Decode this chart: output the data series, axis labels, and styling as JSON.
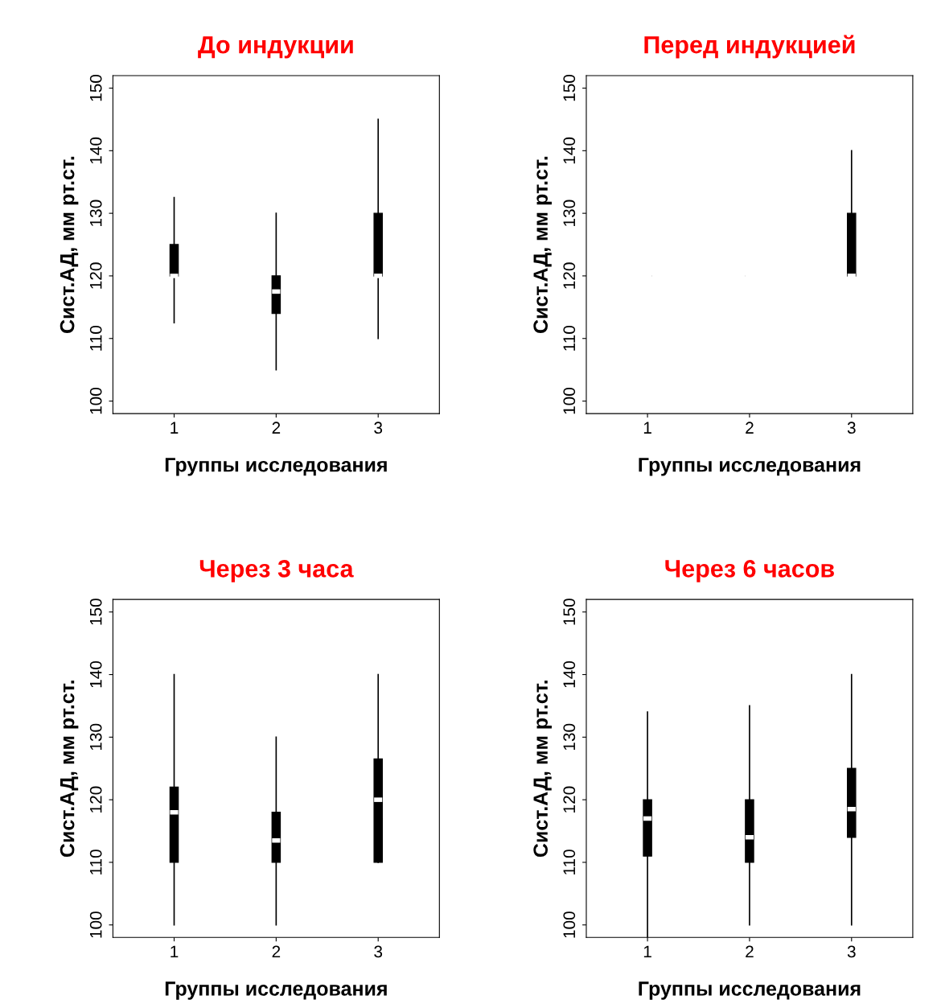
{
  "chart_data": [
    {
      "type": "box",
      "title": "До индукции",
      "xlabel": "Группы исследования",
      "ylabel": "Сист.АД, мм рт.ст.",
      "categories": [
        "1",
        "2",
        "3"
      ],
      "ylim": [
        98,
        152
      ],
      "yticks": [
        100,
        110,
        120,
        130,
        140,
        150
      ],
      "color": "#000000",
      "grid": false,
      "legend": false,
      "boxes": [
        {
          "low": 112.5,
          "q1": 120,
          "median": 120,
          "q3": 125,
          "high": 132.5
        },
        {
          "low": 105,
          "q1": 114,
          "median": 117.5,
          "q3": 120,
          "high": 130
        },
        {
          "low": 110,
          "q1": 120,
          "median": 120,
          "q3": 130,
          "high": 145
        }
      ]
    },
    {
      "type": "box",
      "title": "Перед индукцией",
      "xlabel": "Группы исследования",
      "ylabel": "Сист.АД, мм рт.ст.",
      "categories": [
        "1",
        "2",
        "3"
      ],
      "ylim": [
        98,
        152
      ],
      "yticks": [
        100,
        110,
        120,
        130,
        140,
        150
      ],
      "color": "#000000",
      "grid": false,
      "legend": false,
      "boxes": [
        {
          "low": 120,
          "q1": 120,
          "median": 120,
          "q3": 120,
          "high": 120
        },
        {
          "low": 120,
          "q1": 120,
          "median": 120,
          "q3": 120,
          "high": 120
        },
        {
          "low": 120,
          "q1": 120,
          "median": 120,
          "q3": 130,
          "high": 140
        }
      ]
    },
    {
      "type": "box",
      "title": "Через 3 часа",
      "xlabel": "Группы исследования",
      "ylabel": "Сист.АД, мм рт.ст.",
      "categories": [
        "1",
        "2",
        "3"
      ],
      "ylim": [
        98,
        152
      ],
      "yticks": [
        100,
        110,
        120,
        130,
        140,
        150
      ],
      "color": "#000000",
      "grid": false,
      "legend": false,
      "boxes": [
        {
          "low": 100,
          "q1": 110,
          "median": 118,
          "q3": 122,
          "high": 140
        },
        {
          "low": 100,
          "q1": 110,
          "median": 113.5,
          "q3": 118,
          "high": 130
        },
        {
          "low": 110,
          "q1": 110,
          "median": 120,
          "q3": 126.5,
          "high": 140
        }
      ]
    },
    {
      "type": "box",
      "title": "Через 6 часов",
      "xlabel": "Группы исследования",
      "ylabel": "Сист.АД, мм рт.ст.",
      "categories": [
        "1",
        "2",
        "3"
      ],
      "ylim": [
        98,
        152
      ],
      "yticks": [
        100,
        110,
        120,
        130,
        140,
        150
      ],
      "color": "#000000",
      "grid": false,
      "legend": false,
      "boxes": [
        {
          "low": 98,
          "q1": 111,
          "median": 117,
          "q3": 120,
          "high": 134
        },
        {
          "low": 100,
          "q1": 110,
          "median": 114,
          "q3": 120,
          "high": 135
        },
        {
          "low": 100,
          "q1": 114,
          "median": 118.5,
          "q3": 125,
          "high": 140
        }
      ]
    }
  ]
}
